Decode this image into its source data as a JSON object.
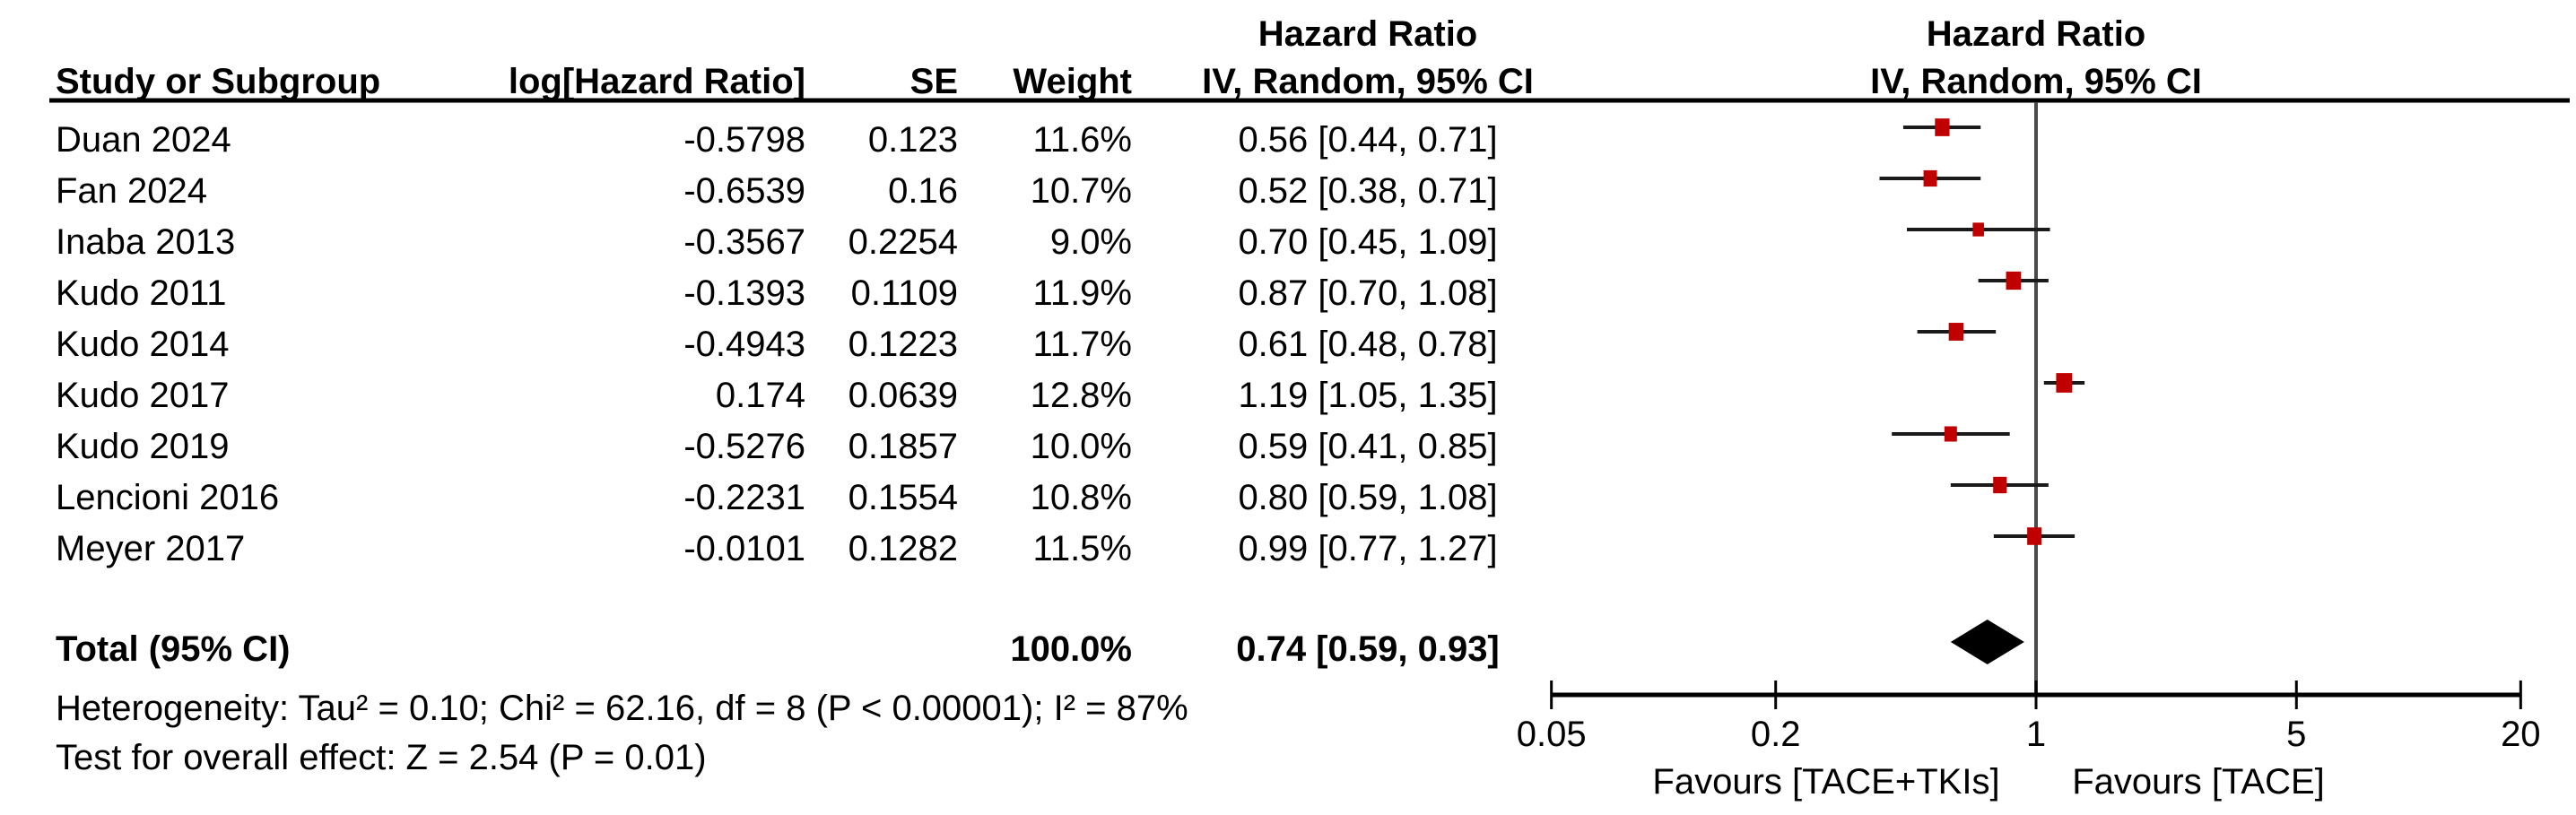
{
  "table": {
    "headers": {
      "study": "Study or Subgroup",
      "log_hr": "log[Hazard Ratio]",
      "se": "SE",
      "weight": "Weight",
      "effect_top": "Hazard Ratio",
      "effect_bottom": "IV, Random, 95% CI"
    },
    "plot_headers": {
      "top": "Hazard Ratio",
      "bottom": "IV, Random, 95% CI"
    }
  },
  "chart_data": {
    "type": "forest",
    "x_scale": "log",
    "axis_range": [
      0.05,
      20
    ],
    "axis_ticks": [
      {
        "value": 0.05,
        "label": "0.05"
      },
      {
        "value": 0.2,
        "label": "0.2"
      },
      {
        "value": 1,
        "label": "1"
      },
      {
        "value": 5,
        "label": "5"
      },
      {
        "value": 20,
        "label": "20"
      }
    ],
    "null_line_value": 1,
    "favours_left": "Favours [TACE+TKIs]",
    "favours_right": "Favours [TACE]",
    "marker_color": "#c00000",
    "ci_line_color": "#1a1a1a",
    "diamond_color": "#000000",
    "null_line_color": "#4a4a4a",
    "studies": [
      {
        "name": "Duan 2024",
        "log_hr": "-0.5798",
        "se": "0.123",
        "weight": "11.6%",
        "weight_pct": 11.6,
        "hr": 0.56,
        "ci_low": 0.44,
        "ci_high": 0.71,
        "ci_label": "0.56 [0.44, 0.71]"
      },
      {
        "name": "Fan 2024",
        "log_hr": "-0.6539",
        "se": "0.16",
        "weight": "10.7%",
        "weight_pct": 10.7,
        "hr": 0.52,
        "ci_low": 0.38,
        "ci_high": 0.71,
        "ci_label": "0.52 [0.38, 0.71]"
      },
      {
        "name": "Inaba 2013",
        "log_hr": "-0.3567",
        "se": "0.2254",
        "weight": "9.0%",
        "weight_pct": 9.0,
        "hr": 0.7,
        "ci_low": 0.45,
        "ci_high": 1.09,
        "ci_label": "0.70 [0.45, 1.09]"
      },
      {
        "name": "Kudo 2011",
        "log_hr": "-0.1393",
        "se": "0.1109",
        "weight": "11.9%",
        "weight_pct": 11.9,
        "hr": 0.87,
        "ci_low": 0.7,
        "ci_high": 1.08,
        "ci_label": "0.87 [0.70, 1.08]"
      },
      {
        "name": "Kudo 2014",
        "log_hr": "-0.4943",
        "se": "0.1223",
        "weight": "11.7%",
        "weight_pct": 11.7,
        "hr": 0.61,
        "ci_low": 0.48,
        "ci_high": 0.78,
        "ci_label": "0.61 [0.48, 0.78]"
      },
      {
        "name": "Kudo 2017",
        "log_hr": "0.174",
        "se": "0.0639",
        "weight": "12.8%",
        "weight_pct": 12.8,
        "hr": 1.19,
        "ci_low": 1.05,
        "ci_high": 1.35,
        "ci_label": "1.19 [1.05, 1.35]"
      },
      {
        "name": "Kudo 2019",
        "log_hr": "-0.5276",
        "se": "0.1857",
        "weight": "10.0%",
        "weight_pct": 10.0,
        "hr": 0.59,
        "ci_low": 0.41,
        "ci_high": 0.85,
        "ci_label": "0.59 [0.41, 0.85]"
      },
      {
        "name": "Lencioni 2016",
        "log_hr": "-0.2231",
        "se": "0.1554",
        "weight": "10.8%",
        "weight_pct": 10.8,
        "hr": 0.8,
        "ci_low": 0.59,
        "ci_high": 1.08,
        "ci_label": "0.80 [0.59, 1.08]"
      },
      {
        "name": "Meyer 2017",
        "log_hr": "-0.0101",
        "se": "0.1282",
        "weight": "11.5%",
        "weight_pct": 11.5,
        "hr": 0.99,
        "ci_low": 0.77,
        "ci_high": 1.27,
        "ci_label": "0.99 [0.77, 1.27]"
      }
    ],
    "total": {
      "label": "Total (95% CI)",
      "weight": "100.0%",
      "weight_pct": 100.0,
      "hr": 0.74,
      "ci_low": 0.59,
      "ci_high": 0.93,
      "ci_label": "0.74 [0.59, 0.93]"
    },
    "heterogeneity": "Heterogeneity: Tau² = 0.10; Chi² = 62.16, df = 8 (P < 0.00001); I² = 87%",
    "overall_effect": "Test for overall effect: Z = 2.54 (P = 0.01)"
  }
}
